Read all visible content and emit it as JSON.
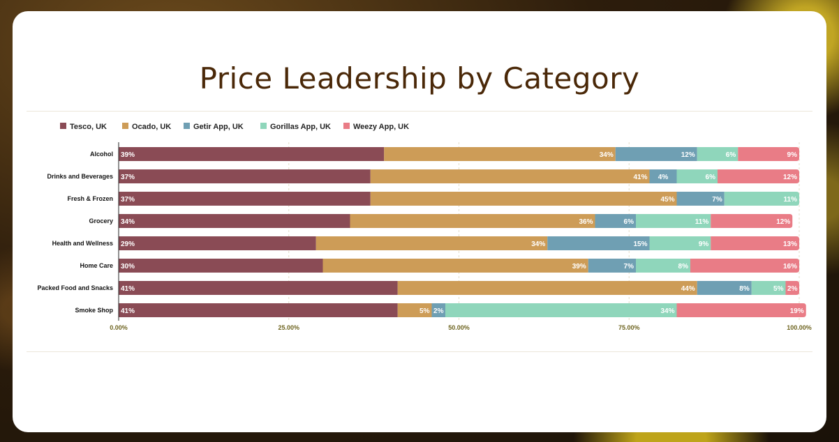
{
  "title": "Price Leadership by Category",
  "chart_data": {
    "type": "bar",
    "orientation": "horizontal",
    "stacked": true,
    "title": "Price Leadership by Category",
    "categories": [
      "Alcohol",
      "Drinks and Beverages",
      "Fresh & Frozen",
      "Grocery",
      "Health and Wellness",
      "Home Care",
      "Packed Food and Snacks",
      "Smoke Shop"
    ],
    "series": [
      {
        "name": "Tesco, UK",
        "color": "#8a4b55",
        "values": [
          39,
          37,
          37,
          34,
          29,
          30,
          41,
          41
        ]
      },
      {
        "name": "Ocado, UK",
        "color": "#cd9c57",
        "values": [
          34,
          41,
          45,
          36,
          34,
          39,
          44,
          5
        ]
      },
      {
        "name": "Getir App, UK",
        "color": "#6f9fb3",
        "values": [
          12,
          4,
          7,
          6,
          15,
          7,
          8,
          2
        ]
      },
      {
        "name": "Gorillas App, UK",
        "color": "#8fd6bb",
        "values": [
          6,
          6,
          11,
          11,
          9,
          8,
          5,
          34
        ]
      },
      {
        "name": "Weezy App, UK",
        "color": "#e97c86",
        "values": [
          9,
          12,
          0,
          12,
          13,
          16,
          2,
          19
        ]
      }
    ],
    "xlim": [
      0,
      100
    ],
    "x_ticks": [
      "0.00%",
      "25.00%",
      "50.00%",
      "75.00%",
      "100.00%"
    ],
    "grid": "vertical dashed",
    "legend_position": "top-left",
    "value_suffix": "%"
  }
}
